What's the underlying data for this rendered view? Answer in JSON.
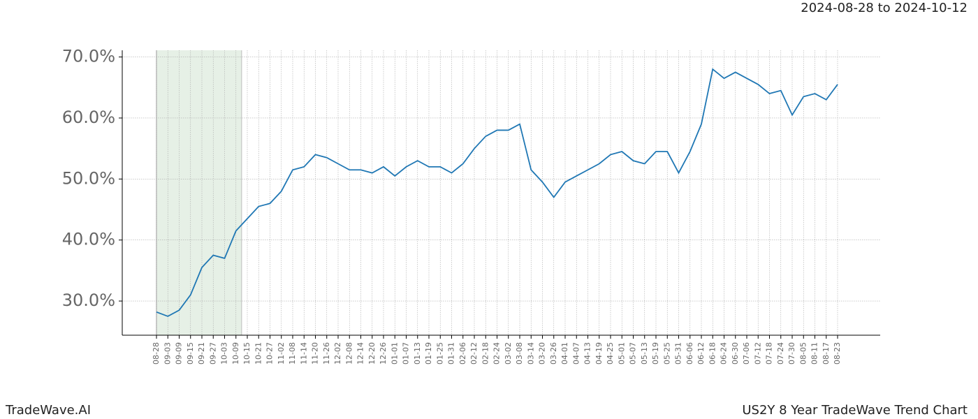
{
  "header": "2024-08-28 to 2024-10-12",
  "footer_left": "TradeWave.AI",
  "footer_right": "US2Y 8 Year TradeWave Trend Chart",
  "chart_data": {
    "type": "line",
    "categories": [
      "08-28",
      "09-03",
      "09-09",
      "09-15",
      "09-21",
      "09-27",
      "10-03",
      "10-09",
      "10-15",
      "10-21",
      "10-27",
      "11-02",
      "11-08",
      "11-14",
      "11-20",
      "11-26",
      "12-02",
      "12-08",
      "12-14",
      "12-20",
      "12-26",
      "01-01",
      "01-07",
      "01-13",
      "01-19",
      "01-25",
      "01-31",
      "02-06",
      "02-12",
      "02-18",
      "02-24",
      "03-02",
      "03-08",
      "03-14",
      "03-20",
      "03-26",
      "04-01",
      "04-07",
      "04-13",
      "04-19",
      "04-25",
      "05-01",
      "05-07",
      "05-13",
      "05-19",
      "05-25",
      "05-31",
      "06-06",
      "06-12",
      "06-18",
      "06-24",
      "06-30",
      "07-06",
      "07-12",
      "07-18",
      "07-24",
      "07-30",
      "08-05",
      "08-11",
      "08-17",
      "08-23"
    ],
    "values": [
      28.2,
      27.5,
      28.5,
      31,
      35.5,
      37.5,
      37,
      41.5,
      43.5,
      45.5,
      46,
      48,
      51.5,
      52,
      54,
      53.5,
      52.5,
      51.5,
      51.5,
      51,
      52,
      50.5,
      52,
      53,
      52,
      52,
      51,
      52.5,
      55,
      57,
      58,
      58,
      59,
      51.5,
      49.5,
      47,
      49.5,
      50.5,
      51.5,
      52.5,
      54,
      54.5,
      53,
      52.5,
      54.5,
      54.5,
      51,
      54.5,
      59,
      68,
      66.5,
      67.5,
      66.5,
      65.5,
      64,
      64.5,
      60.5,
      63.5,
      64,
      63,
      65.5
    ],
    "color": "#1f77b4",
    "ylim": [
      24.4,
      71.1
    ],
    "yticks": [
      {
        "value": 30,
        "label": "30.0%"
      },
      {
        "value": 40,
        "label": "40.0%"
      },
      {
        "value": 50,
        "label": "50.0%"
      },
      {
        "value": 60,
        "label": "60.0%"
      },
      {
        "value": 70,
        "label": "70.0%"
      }
    ],
    "grid": true
  }
}
